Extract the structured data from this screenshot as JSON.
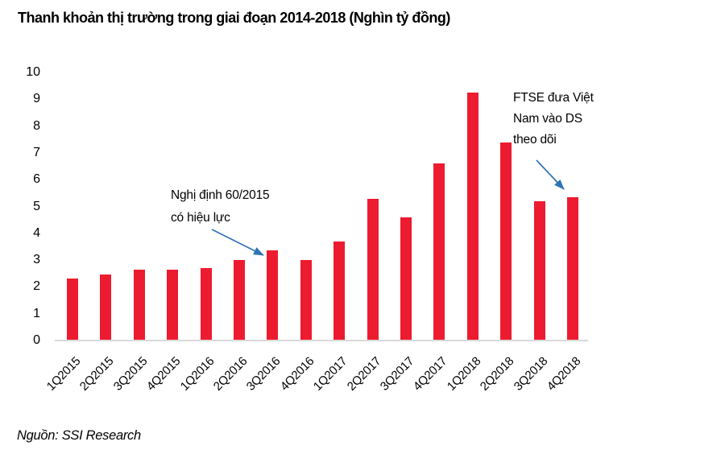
{
  "title": "Thanh khoản thị trường trong giai đoạn 2014-2018 (Nghìn tỷ đồng)",
  "source": "Nguồn: SSI Research",
  "colors": {
    "bar_red": "#ED1B2F",
    "arrow_blue": "#2E74B5",
    "axis_line": "#D9D9D9",
    "text": "#000000"
  },
  "annotations": {
    "decree": {
      "lines": [
        "Nghị định 60/2015",
        "có hiệu lực"
      ],
      "target": "3Q2016"
    },
    "ftse": {
      "lines": [
        "FTSE đưa Việt",
        "Nam vào DS",
        "theo dõi"
      ],
      "target": "4Q2018"
    }
  },
  "chart_data": {
    "type": "bar",
    "title": "Thanh khoản thị trường trong giai đoạn 2014-2018 (Nghìn tỷ đồng)",
    "categories": [
      "1Q2015",
      "2Q2015",
      "3Q2015",
      "4Q2015",
      "1Q2016",
      "2Q2016",
      "3Q2016",
      "4Q2016",
      "1Q2017",
      "2Q2017",
      "3Q2017",
      "4Q2017",
      "1Q2018",
      "2Q2018",
      "3Q2018",
      "4Q2018"
    ],
    "values": [
      2.3,
      2.45,
      2.65,
      2.65,
      2.7,
      3.0,
      3.35,
      3.0,
      3.7,
      5.3,
      4.6,
      6.6,
      9.25,
      7.4,
      5.2,
      5.35
    ],
    "xlabel": "",
    "ylabel": "",
    "ylim": [
      0,
      10
    ],
    "yticks": [
      0,
      1,
      2,
      3,
      4,
      5,
      6,
      7,
      8,
      9,
      10
    ],
    "grid": false,
    "legend": false,
    "bar_color": "#ED1B2F"
  }
}
